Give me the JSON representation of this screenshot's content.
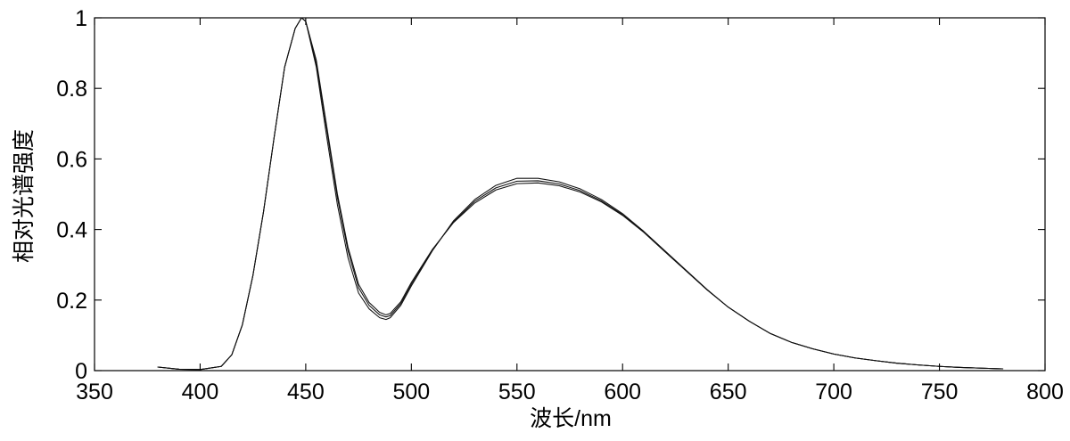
{
  "chart_data": {
    "type": "line",
    "title": "",
    "xlabel": "波长/nm",
    "ylabel": "相对光谱强度",
    "xlim": [
      350,
      800
    ],
    "ylim": [
      0,
      1
    ],
    "x_ticks": [
      350,
      400,
      450,
      500,
      550,
      600,
      650,
      700,
      750,
      800
    ],
    "y_ticks": [
      0,
      0.2,
      0.4,
      0.6,
      0.8,
      1
    ],
    "y_tick_labels": [
      "0",
      "0.2",
      "0.4",
      "0.6",
      "0.8",
      "1"
    ],
    "grid": false,
    "line_color": "#111111",
    "x": [
      380,
      390,
      400,
      410,
      415,
      420,
      425,
      430,
      435,
      440,
      445,
      448,
      450,
      455,
      460,
      465,
      470,
      475,
      480,
      485,
      488,
      490,
      495,
      500,
      510,
      520,
      530,
      540,
      550,
      560,
      570,
      580,
      590,
      600,
      610,
      620,
      630,
      640,
      650,
      660,
      670,
      680,
      690,
      700,
      710,
      720,
      730,
      740,
      750,
      760,
      770,
      780
    ],
    "series": [
      {
        "values": [
          0.01,
          0.004,
          0.003,
          0.012,
          0.045,
          0.13,
          0.27,
          0.45,
          0.66,
          0.86,
          0.97,
          1.0,
          0.99,
          0.86,
          0.66,
          0.47,
          0.32,
          0.22,
          0.175,
          0.15,
          0.145,
          0.15,
          0.185,
          0.24,
          0.34,
          0.425,
          0.485,
          0.525,
          0.545,
          0.545,
          0.535,
          0.515,
          0.485,
          0.445,
          0.395,
          0.34,
          0.285,
          0.23,
          0.18,
          0.14,
          0.105,
          0.08,
          0.062,
          0.047,
          0.036,
          0.028,
          0.021,
          0.016,
          0.012,
          0.009,
          0.007,
          0.005
        ]
      },
      {
        "values": [
          0.01,
          0.004,
          0.003,
          0.012,
          0.045,
          0.13,
          0.27,
          0.45,
          0.66,
          0.86,
          0.97,
          1.0,
          0.99,
          0.87,
          0.68,
          0.49,
          0.34,
          0.235,
          0.185,
          0.158,
          0.152,
          0.156,
          0.19,
          0.245,
          0.342,
          0.422,
          0.48,
          0.518,
          0.537,
          0.538,
          0.529,
          0.51,
          0.481,
          0.442,
          0.393,
          0.338,
          0.284,
          0.229,
          0.18,
          0.14,
          0.105,
          0.08,
          0.062,
          0.047,
          0.036,
          0.028,
          0.021,
          0.016,
          0.012,
          0.009,
          0.007,
          0.005
        ]
      },
      {
        "values": [
          0.01,
          0.004,
          0.003,
          0.012,
          0.045,
          0.13,
          0.27,
          0.45,
          0.66,
          0.86,
          0.97,
          1.0,
          0.99,
          0.88,
          0.69,
          0.5,
          0.35,
          0.245,
          0.193,
          0.165,
          0.158,
          0.162,
          0.195,
          0.25,
          0.344,
          0.42,
          0.475,
          0.512,
          0.53,
          0.532,
          0.524,
          0.506,
          0.478,
          0.44,
          0.392,
          0.337,
          0.283,
          0.229,
          0.18,
          0.14,
          0.105,
          0.08,
          0.062,
          0.047,
          0.036,
          0.028,
          0.021,
          0.016,
          0.012,
          0.009,
          0.007,
          0.005
        ]
      }
    ]
  }
}
